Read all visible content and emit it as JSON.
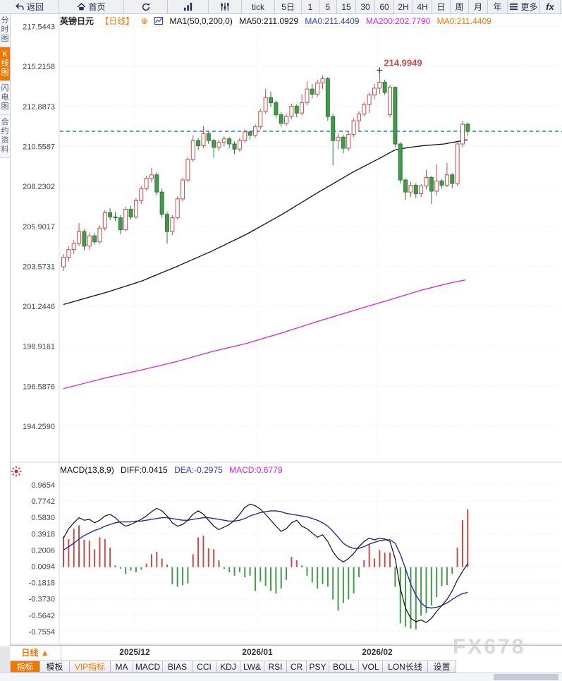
{
  "watermark": "FX678",
  "toolbar": {
    "buttons": [
      {
        "id": "back",
        "icon": "back-arrow-icon",
        "label": "返回"
      },
      {
        "id": "home",
        "icon": "home-icon",
        "label": "首页"
      },
      {
        "id": "refresh",
        "icon": "refresh-icon",
        "label": ""
      },
      {
        "id": "chart-type",
        "icon": "bar-chart-icon",
        "label": ""
      },
      {
        "id": "indicator-settings",
        "icon": "sliders-icon",
        "label": ""
      },
      {
        "id": "tick",
        "icon": "",
        "label": "tick"
      },
      {
        "id": "5d",
        "icon": "",
        "label": "5日"
      },
      {
        "id": "1m",
        "icon": "",
        "label": "1"
      },
      {
        "id": "5m",
        "icon": "",
        "label": "5"
      },
      {
        "id": "15m",
        "icon": "",
        "label": "15"
      },
      {
        "id": "30m",
        "icon": "",
        "label": "30"
      },
      {
        "id": "60m",
        "icon": "",
        "label": "60"
      },
      {
        "id": "2h",
        "icon": "",
        "label": "2H"
      },
      {
        "id": "4h",
        "icon": "",
        "label": "4H"
      },
      {
        "id": "day",
        "icon": "",
        "label": "日"
      },
      {
        "id": "week",
        "icon": "",
        "label": "周"
      },
      {
        "id": "month",
        "icon": "",
        "label": "月"
      },
      {
        "id": "year",
        "icon": "",
        "label": "年"
      },
      {
        "id": "more",
        "icon": "menu-icon",
        "label": "更多"
      },
      {
        "id": "fx",
        "icon": "fx-icon",
        "label": "fx"
      }
    ]
  },
  "sidebar": {
    "tabs": [
      {
        "label": "分时图",
        "active": false
      },
      {
        "label": "K线图",
        "active": true
      },
      {
        "label": "闪电图",
        "active": false
      },
      {
        "label": "合约资料",
        "active": false
      }
    ]
  },
  "chart_header": {
    "symbol": "英镑日元",
    "period_tag": "【日线】",
    "plus_icon": "⊕",
    "ma_settings": "MA1(50,0,200,0)",
    "ma50": "MA50:211.0929",
    "ma0_blue": "MA0:211.4409",
    "ma200": "MA200:202.7790",
    "ma0_orange": "MA0:211.4409"
  },
  "macd_header": {
    "title": "MACD(13,8,9)",
    "diff": "DIFF:0.0415",
    "dea": "DEA:-0.2975",
    "macd": "MACD:0.6779"
  },
  "x_axis": {
    "period_label": "日线 ▲",
    "months": [
      {
        "label": "2025/12",
        "x": 191
      },
      {
        "label": "2026/01",
        "x": 365
      },
      {
        "label": "2026/02",
        "x": 535
      }
    ]
  },
  "bottom_tabs": [
    {
      "label": "指标",
      "active": true,
      "vip": false
    },
    {
      "label": "模板",
      "active": false,
      "vip": false
    },
    {
      "label": "VIP指标",
      "active": false,
      "vip": true
    },
    {
      "label": "MA",
      "active": false,
      "vip": false
    },
    {
      "label": "MACD",
      "active": false,
      "vip": false
    },
    {
      "label": "BIAS",
      "active": false,
      "vip": false
    },
    {
      "label": "CCI",
      "active": false,
      "vip": false
    },
    {
      "label": "KDJ",
      "active": false,
      "vip": false
    },
    {
      "label": "LW&",
      "active": false,
      "vip": false
    },
    {
      "label": "RSI",
      "active": false,
      "vip": false
    },
    {
      "label": "CR",
      "active": false,
      "vip": false
    },
    {
      "label": "PSY",
      "active": false,
      "vip": false
    },
    {
      "label": "BOLL",
      "active": false,
      "vip": false
    },
    {
      "label": "VOL",
      "active": false,
      "vip": false
    },
    {
      "label": "LON长线",
      "active": false,
      "vip": false
    },
    {
      "label": "设置",
      "active": false,
      "vip": false
    }
  ],
  "colors": {
    "up": "#c94a4a",
    "down_fill": "#449a4c",
    "down_stroke": "#2f7a38",
    "ma50": "#111111",
    "ma200": "#e020e0",
    "dea": "#1e3094",
    "diff": "#111111",
    "current_price_line": "#1f7fe0",
    "grid": "#e5e5ec",
    "accent": "#f07800",
    "annotation": "#c94a4a",
    "axis_text": "#444444"
  },
  "chart_data": {
    "type": "candlestick",
    "title": "英镑日元 日线 (GBP/JPY Daily)",
    "current_price": 211.4409,
    "annotation": {
      "text": "214.9949",
      "price": 214.9949
    },
    "price_axis_labels": [
      "217.5443",
      "215.2158",
      "212.8873",
      "210.5587",
      "208.2302",
      "205.9017",
      "203.5731",
      "201.2446",
      "198.9161",
      "196.5876",
      "194.2590"
    ],
    "macd_axis_labels": [
      "0.9654",
      "0.7742",
      "0.5830",
      "0.3918",
      "0.2006",
      "0.0094",
      "-0.1818",
      "-0.3730",
      "-0.5642",
      "-0.7554"
    ],
    "ylim": [
      194.259,
      217.5443
    ],
    "macd_ylim": [
      -0.7554,
      0.9654
    ],
    "candles": [
      [
        203.55,
        204.3,
        203.3,
        204.1
      ],
      [
        204.1,
        204.75,
        203.85,
        204.55
      ],
      [
        204.55,
        205.1,
        204.3,
        204.9
      ],
      [
        204.9,
        206.1,
        204.75,
        205.6
      ],
      [
        205.6,
        205.75,
        204.5,
        204.75
      ],
      [
        204.75,
        205.55,
        204.55,
        205.35
      ],
      [
        205.35,
        205.5,
        204.85,
        205.0
      ],
      [
        205.0,
        205.95,
        204.9,
        205.8
      ],
      [
        205.8,
        206.85,
        205.65,
        206.7
      ],
      [
        206.7,
        206.95,
        206.25,
        206.45
      ],
      [
        206.45,
        206.75,
        206.2,
        206.4
      ],
      [
        206.4,
        206.55,
        205.45,
        205.7
      ],
      [
        205.7,
        207.05,
        205.6,
        206.9
      ],
      [
        206.9,
        207.1,
        206.3,
        206.45
      ],
      [
        206.45,
        207.55,
        206.35,
        207.4
      ],
      [
        207.4,
        208.25,
        207.2,
        208.1
      ],
      [
        208.1,
        208.85,
        207.95,
        208.7
      ],
      [
        208.7,
        209.3,
        208.45,
        208.9
      ],
      [
        208.9,
        209.05,
        207.7,
        207.9
      ],
      [
        207.9,
        208.1,
        206.4,
        206.6
      ],
      [
        206.6,
        206.75,
        204.9,
        205.6
      ],
      [
        205.6,
        206.55,
        205.4,
        206.4
      ],
      [
        206.4,
        207.65,
        206.3,
        207.5
      ],
      [
        207.5,
        208.75,
        207.35,
        208.6
      ],
      [
        208.6,
        209.95,
        208.45,
        209.8
      ],
      [
        209.8,
        211.2,
        209.65,
        210.9
      ],
      [
        210.9,
        211.05,
        210.35,
        210.6
      ],
      [
        210.6,
        211.75,
        210.45,
        211.3
      ],
      [
        211.3,
        211.45,
        210.7,
        210.9
      ],
      [
        210.9,
        211.0,
        209.9,
        210.5
      ],
      [
        210.5,
        210.95,
        210.3,
        210.8
      ],
      [
        210.8,
        211.15,
        210.55,
        211.0
      ],
      [
        211.0,
        211.1,
        210.45,
        210.7
      ],
      [
        210.7,
        210.85,
        210.1,
        210.4
      ],
      [
        210.4,
        211.05,
        210.25,
        210.9
      ],
      [
        210.9,
        211.55,
        210.75,
        211.4
      ],
      [
        211.4,
        211.5,
        210.95,
        211.2
      ],
      [
        211.2,
        211.85,
        211.05,
        211.7
      ],
      [
        211.7,
        212.75,
        211.55,
        212.6
      ],
      [
        212.6,
        213.9,
        212.45,
        213.4
      ],
      [
        213.4,
        213.75,
        212.85,
        213.1
      ],
      [
        213.1,
        213.25,
        212.2,
        212.4
      ],
      [
        212.4,
        212.55,
        211.7,
        211.9
      ],
      [
        211.9,
        212.45,
        211.75,
        212.3
      ],
      [
        212.3,
        213.05,
        212.15,
        212.9
      ],
      [
        212.9,
        213.0,
        212.25,
        212.5
      ],
      [
        212.5,
        213.6,
        212.35,
        213.1
      ],
      [
        213.1,
        214.35,
        212.95,
        213.9
      ],
      [
        213.9,
        214.2,
        213.35,
        213.6
      ],
      [
        213.6,
        214.45,
        213.45,
        214.25
      ],
      [
        214.25,
        214.7,
        213.9,
        214.5
      ],
      [
        214.5,
        214.6,
        212.05,
        212.3
      ],
      [
        212.3,
        212.45,
        209.45,
        210.9
      ],
      [
        210.9,
        211.35,
        210.4,
        211.1
      ],
      [
        211.1,
        211.25,
        210.15,
        210.45
      ],
      [
        210.45,
        211.4,
        210.3,
        211.25
      ],
      [
        211.25,
        212.2,
        211.1,
        212.05
      ],
      [
        212.05,
        212.6,
        211.45,
        212.45
      ],
      [
        212.45,
        213.15,
        212.3,
        213.0
      ],
      [
        213.0,
        213.7,
        212.5,
        213.55
      ],
      [
        213.55,
        214.2,
        213.3,
        213.95
      ],
      [
        213.95,
        214.9949,
        213.6,
        214.3
      ],
      [
        214.3,
        214.45,
        213.55,
        213.7
      ],
      [
        212.4,
        214.15,
        212.25,
        214.0
      ],
      [
        214.0,
        214.05,
        210.5,
        210.7
      ],
      [
        210.7,
        210.8,
        208.4,
        208.6
      ],
      [
        208.6,
        208.7,
        207.45,
        207.9
      ],
      [
        207.9,
        208.5,
        207.6,
        208.3
      ],
      [
        208.3,
        208.4,
        207.55,
        207.8
      ],
      [
        207.8,
        208.35,
        207.6,
        208.25
      ],
      [
        208.25,
        209.2,
        208.05,
        208.75
      ],
      [
        208.75,
        208.85,
        207.2,
        207.95
      ],
      [
        207.95,
        209.5,
        207.7,
        208.55
      ],
      [
        208.55,
        208.65,
        208.1,
        208.3
      ],
      [
        208.3,
        209.6,
        208.2,
        208.9
      ],
      [
        208.9,
        209.0,
        208.15,
        208.4
      ],
      [
        208.4,
        210.8,
        208.25,
        210.7
      ],
      [
        210.7,
        212.05,
        210.5,
        211.85
      ],
      [
        211.85,
        211.95,
        211.2,
        211.4409
      ]
    ],
    "ma50_points": [
      [
        90,
        201.35
      ],
      [
        150,
        202.05
      ],
      [
        200,
        202.7
      ],
      [
        250,
        203.55
      ],
      [
        300,
        204.45
      ],
      [
        350,
        205.45
      ],
      [
        400,
        206.6
      ],
      [
        450,
        207.85
      ],
      [
        500,
        209.05
      ],
      [
        540,
        209.9
      ],
      [
        560,
        210.35
      ],
      [
        580,
        210.5
      ],
      [
        600,
        210.6
      ],
      [
        630,
        210.7
      ],
      [
        663,
        210.95
      ]
    ],
    "ma200_points": [
      [
        90,
        196.45
      ],
      [
        150,
        197.08
      ],
      [
        200,
        197.53
      ],
      [
        250,
        198.02
      ],
      [
        300,
        198.6
      ],
      [
        350,
        199.09
      ],
      [
        400,
        199.7
      ],
      [
        450,
        200.36
      ],
      [
        500,
        200.98
      ],
      [
        550,
        201.59
      ],
      [
        600,
        202.21
      ],
      [
        640,
        202.62
      ],
      [
        660,
        202.78
      ]
    ],
    "macd": {
      "hist": [
        0.36,
        0.33,
        0.45,
        0.49,
        0.32,
        0.31,
        0.21,
        0.35,
        0.33,
        0.23,
        0.02,
        -0.02,
        -0.08,
        -0.04,
        -0.06,
        -0.03,
        0.04,
        0.15,
        0.18,
        0.1,
        0.03,
        -0.2,
        -0.23,
        -0.21,
        -0.19,
        0.15,
        0.35,
        0.37,
        0.22,
        0.21,
        0.08,
        -0.02,
        -0.06,
        -0.1,
        -0.06,
        -0.12,
        -0.1,
        -0.28,
        -0.17,
        -0.22,
        -0.28,
        -0.31,
        -0.25,
        -0.15,
        0.12,
        0.08,
        0.02,
        -0.1,
        -0.18,
        -0.25,
        -0.2,
        -0.23,
        -0.38,
        -0.51,
        -0.42,
        -0.38,
        -0.31,
        -0.12,
        0.08,
        0.27,
        0.1,
        0.2,
        0.17,
        0.17,
        -0.23,
        -0.66,
        -0.7,
        -0.72,
        -0.73,
        -0.57,
        -0.54,
        -0.45,
        -0.35,
        -0.22,
        -0.21,
        -0.08,
        0.23,
        0.55,
        0.6779
      ],
      "diff": [
        0.34,
        0.45,
        0.52,
        0.58,
        0.55,
        0.56,
        0.52,
        0.55,
        0.6,
        0.62,
        0.58,
        0.52,
        0.48,
        0.5,
        0.53,
        0.56,
        0.6,
        0.65,
        0.69,
        0.66,
        0.6,
        0.52,
        0.48,
        0.5,
        0.55,
        0.62,
        0.66,
        0.62,
        0.55,
        0.48,
        0.44,
        0.47,
        0.5,
        0.55,
        0.62,
        0.7,
        0.74,
        0.72,
        0.68,
        0.62,
        0.55,
        0.48,
        0.42,
        0.45,
        0.52,
        0.55,
        0.48,
        0.45,
        0.4,
        0.35,
        0.38,
        0.3,
        0.18,
        0.1,
        0.06,
        0.1,
        0.16,
        0.24,
        0.3,
        0.34,
        0.32,
        0.34,
        0.33,
        0.3,
        0.1,
        -0.25,
        -0.48,
        -0.6,
        -0.64,
        -0.62,
        -0.65,
        -0.6,
        -0.52,
        -0.45,
        -0.38,
        -0.28,
        -0.15,
        -0.05,
        0.0415
      ],
      "dea": [
        0.2,
        0.24,
        0.28,
        0.33,
        0.37,
        0.4,
        0.43,
        0.45,
        0.48,
        0.5,
        0.52,
        0.53,
        0.53,
        0.53,
        0.54,
        0.54,
        0.55,
        0.56,
        0.57,
        0.58,
        0.58,
        0.57,
        0.56,
        0.55,
        0.55,
        0.56,
        0.57,
        0.58,
        0.58,
        0.57,
        0.56,
        0.55,
        0.54,
        0.54,
        0.55,
        0.57,
        0.6,
        0.62,
        0.64,
        0.65,
        0.66,
        0.66,
        0.65,
        0.63,
        0.62,
        0.61,
        0.6,
        0.59,
        0.57,
        0.55,
        0.52,
        0.48,
        0.42,
        0.35,
        0.28,
        0.24,
        0.22,
        0.22,
        0.24,
        0.27,
        0.29,
        0.31,
        0.32,
        0.32,
        0.28,
        0.15,
        -0.02,
        -0.2,
        -0.33,
        -0.42,
        -0.47,
        -0.48,
        -0.47,
        -0.45,
        -0.42,
        -0.38,
        -0.34,
        -0.31,
        -0.2975
      ]
    }
  }
}
